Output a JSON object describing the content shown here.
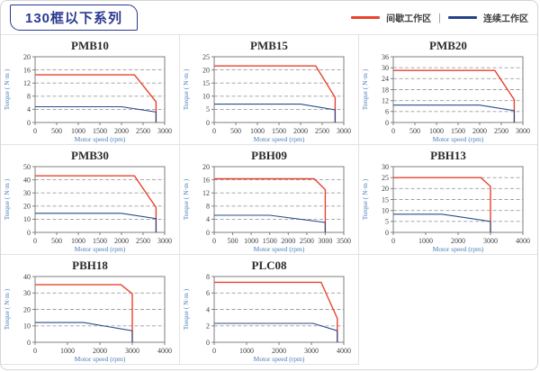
{
  "header": {
    "title": "130框以下系列",
    "legend": [
      {
        "label": "间歇工作区",
        "color": "#e8432d"
      },
      {
        "label": "连续工作区",
        "color": "#25418a"
      }
    ],
    "legend_separator": "|"
  },
  "colors": {
    "accent_navy": "#2b3990",
    "intermittent_red": "#e8432d",
    "continuous_blue": "#25418a",
    "plot_border": "#7f7f7f",
    "gridline": "#9e9e9e",
    "cell_border": "#e3e3e3"
  },
  "chart_data": [
    {
      "type": "line",
      "title": "PMB10",
      "xlabel": "Motor speed (rpm)",
      "ylabel": "Torque ( N·m )",
      "xlim": [
        0,
        3000
      ],
      "xstep": 500,
      "ylim": [
        0,
        20
      ],
      "ystep": 4,
      "grid": "dashed-horizontal",
      "legend_position": "none",
      "series": [
        {
          "key": "intermittent",
          "name": "间歇工作区",
          "color": "#e8432d",
          "width": 1.4,
          "points": [
            [
              0,
              14.5
            ],
            [
              2300,
              14.5
            ],
            [
              2800,
              6.3
            ],
            [
              2800,
              0
            ]
          ]
        },
        {
          "key": "continuous",
          "name": "连续工作区",
          "color": "#2a4a8b",
          "width": 1.1,
          "points": [
            [
              0,
              4.8
            ],
            [
              2000,
              4.8
            ],
            [
              2800,
              3.2
            ],
            [
              2800,
              0
            ]
          ]
        }
      ]
    },
    {
      "type": "line",
      "title": "PMB15",
      "xlabel": "Motor speed (rpm)",
      "ylabel": "Torque ( N·m )",
      "xlim": [
        0,
        3000
      ],
      "xstep": 500,
      "ylim": [
        0,
        25
      ],
      "ystep": 5,
      "grid": "dashed-horizontal",
      "legend_position": "none",
      "series": [
        {
          "key": "intermittent",
          "name": "间歇工作区",
          "color": "#e8432d",
          "width": 1.4,
          "points": [
            [
              0,
              21.5
            ],
            [
              2350,
              21.5
            ],
            [
              2800,
              9.5
            ],
            [
              2800,
              0
            ]
          ]
        },
        {
          "key": "continuous",
          "name": "连续工作区",
          "color": "#2a4a8b",
          "width": 1.1,
          "points": [
            [
              0,
              7
            ],
            [
              2000,
              7
            ],
            [
              2800,
              4.8
            ],
            [
              2800,
              0
            ]
          ]
        }
      ]
    },
    {
      "type": "line",
      "title": "PMB20",
      "xlabel": "Motor speed (rpm)",
      "ylabel": "Torque ( N·m )",
      "xlim": [
        0,
        3000
      ],
      "xstep": 500,
      "ylim": [
        0,
        36
      ],
      "ystep": 6,
      "grid": "dashed-horizontal",
      "legend_position": "none",
      "series": [
        {
          "key": "intermittent",
          "name": "间歇工作区",
          "color": "#e8432d",
          "width": 1.4,
          "points": [
            [
              0,
              28.5
            ],
            [
              2350,
              28.5
            ],
            [
              2800,
              12.5
            ],
            [
              2800,
              0
            ]
          ]
        },
        {
          "key": "continuous",
          "name": "连续工作区",
          "color": "#2a4a8b",
          "width": 1.1,
          "points": [
            [
              0,
              9.5
            ],
            [
              2000,
              9.5
            ],
            [
              2800,
              6.5
            ],
            [
              2800,
              0
            ]
          ]
        }
      ]
    },
    {
      "type": "line",
      "title": "PMB30",
      "xlabel": "Motor speed (rpm)",
      "ylabel": "Torque ( N·m )",
      "xlim": [
        0,
        3000
      ],
      "xstep": 500,
      "ylim": [
        0,
        50
      ],
      "ystep": 10,
      "grid": "dashed-horizontal",
      "legend_position": "none",
      "series": [
        {
          "key": "intermittent",
          "name": "间歇工作区",
          "color": "#e8432d",
          "width": 1.4,
          "points": [
            [
              0,
              43
            ],
            [
              2300,
              43
            ],
            [
              2800,
              19
            ],
            [
              2800,
              0
            ]
          ]
        },
        {
          "key": "continuous",
          "name": "连续工作区",
          "color": "#2a4a8b",
          "width": 1.1,
          "points": [
            [
              0,
              14.5
            ],
            [
              2000,
              14.5
            ],
            [
              2800,
              10.5
            ],
            [
              2800,
              0
            ]
          ]
        }
      ]
    },
    {
      "type": "line",
      "title": "PBH09",
      "xlabel": "Motor speed (rpm)",
      "ylabel": "Torque ( N·m )",
      "xlim": [
        0,
        3500
      ],
      "xstep": 500,
      "ylim": [
        0,
        20
      ],
      "ystep": 4,
      "grid": "dashed-horizontal",
      "legend_position": "none",
      "series": [
        {
          "key": "intermittent",
          "name": "间歇工作区",
          "color": "#e8432d",
          "width": 1.4,
          "points": [
            [
              0,
              16.3
            ],
            [
              2700,
              16.3
            ],
            [
              3000,
              13
            ],
            [
              3000,
              0
            ]
          ]
        },
        {
          "key": "continuous",
          "name": "连续工作区",
          "color": "#2a4a8b",
          "width": 1.1,
          "points": [
            [
              0,
              5.2
            ],
            [
              1500,
              5.2
            ],
            [
              3000,
              3
            ],
            [
              3000,
              0
            ]
          ]
        }
      ]
    },
    {
      "type": "line",
      "title": "PBH13",
      "xlabel": "Motor speed (rpm)",
      "ylabel": "Torque ( N·m )",
      "xlim": [
        0,
        4000
      ],
      "xstep": 1000,
      "ylim": [
        0,
        30
      ],
      "ystep": 5,
      "grid": "dashed-horizontal",
      "legend_position": "none",
      "series": [
        {
          "key": "intermittent",
          "name": "间歇工作区",
          "color": "#e8432d",
          "width": 1.4,
          "points": [
            [
              0,
              25
            ],
            [
              2700,
              25
            ],
            [
              3000,
              21
            ],
            [
              3000,
              0
            ]
          ]
        },
        {
          "key": "continuous",
          "name": "连续工作区",
          "color": "#2a4a8b",
          "width": 1.1,
          "points": [
            [
              0,
              8.3
            ],
            [
              1500,
              8.3
            ],
            [
              3000,
              5
            ],
            [
              3000,
              0
            ]
          ]
        }
      ]
    },
    {
      "type": "line",
      "title": "PBH18",
      "xlabel": "Motor speed (rpm)",
      "ylabel": "Torque ( N·m )",
      "xlim": [
        0,
        4000
      ],
      "xstep": 1000,
      "ylim": [
        0,
        40
      ],
      "ystep": 10,
      "grid": "dashed-horizontal",
      "legend_position": "none",
      "series": [
        {
          "key": "intermittent",
          "name": "间歇工作区",
          "color": "#e8432d",
          "width": 1.4,
          "points": [
            [
              0,
              35
            ],
            [
              2650,
              35
            ],
            [
              3000,
              29.5
            ],
            [
              3000,
              0
            ]
          ]
        },
        {
          "key": "continuous",
          "name": "连续工作区",
          "color": "#2a4a8b",
          "width": 1.1,
          "points": [
            [
              0,
              12
            ],
            [
              1500,
              12
            ],
            [
              3000,
              7
            ],
            [
              3000,
              0
            ]
          ]
        }
      ]
    },
    {
      "type": "line",
      "title": "PLC08",
      "xlabel": "Motor speed (rpm)",
      "ylabel": "Torque ( N·m )",
      "xlim": [
        0,
        4000
      ],
      "xstep": 1000,
      "ylim": [
        0,
        8
      ],
      "ystep": 2,
      "grid": "dashed-horizontal",
      "legend_position": "none",
      "series": [
        {
          "key": "intermittent",
          "name": "间歇工作区",
          "color": "#e8432d",
          "width": 1.4,
          "points": [
            [
              0,
              7.3
            ],
            [
              3300,
              7.3
            ],
            [
              3800,
              2.9
            ],
            [
              3800,
              0
            ]
          ]
        },
        {
          "key": "continuous",
          "name": "连续工作区",
          "color": "#2a4a8b",
          "width": 1.1,
          "points": [
            [
              0,
              2.3
            ],
            [
              3050,
              2.3
            ],
            [
              3800,
              1.4
            ],
            [
              3800,
              0
            ]
          ]
        }
      ]
    }
  ]
}
